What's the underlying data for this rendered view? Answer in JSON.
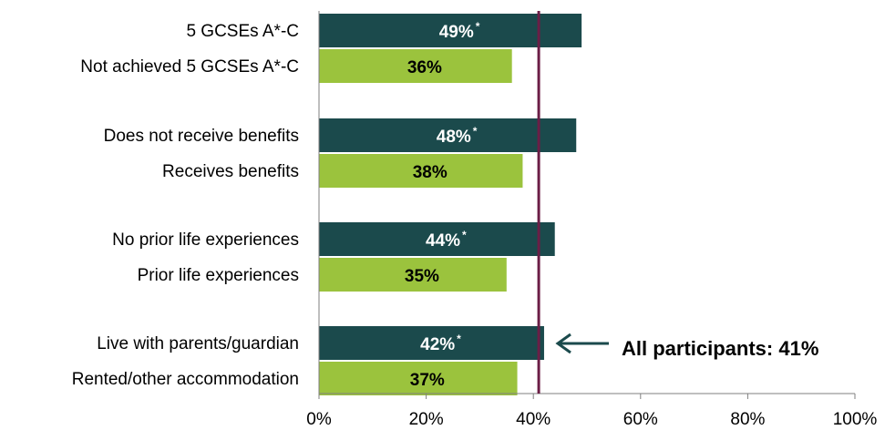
{
  "chart_data": {
    "type": "bar",
    "orientation": "horizontal",
    "xlim": [
      0,
      100
    ],
    "ticks": [
      0,
      20,
      40,
      60,
      80,
      100
    ],
    "tick_suffix": "%",
    "grid": false,
    "categories": [
      "5 GCSEs A*-C",
      "Not achieved 5 GCSEs A*-C",
      "Does not receive benefits",
      "Receives benefits",
      "No prior life experiences",
      "Prior life experiences",
      "Live with parents/guardian",
      "Rented/other accommodation"
    ],
    "values": [
      49,
      36,
      48,
      38,
      44,
      35,
      42,
      37
    ],
    "value_labels": [
      "49%",
      "36%",
      "48%",
      "38%",
      "44%",
      "35%",
      "42%",
      "37%"
    ],
    "significance_marker": "*",
    "significant": [
      true,
      false,
      true,
      false,
      true,
      false,
      true,
      false
    ],
    "colors": {
      "dark_bar": "#1b4a4c",
      "light_bar": "#9bc33d",
      "reference_line": "#6b1e46",
      "dark_label": "#ffffff",
      "light_label": "#000000",
      "arrow": "#1b4a4c"
    },
    "reference": {
      "value": 41,
      "label": "All participants: 41%"
    }
  }
}
